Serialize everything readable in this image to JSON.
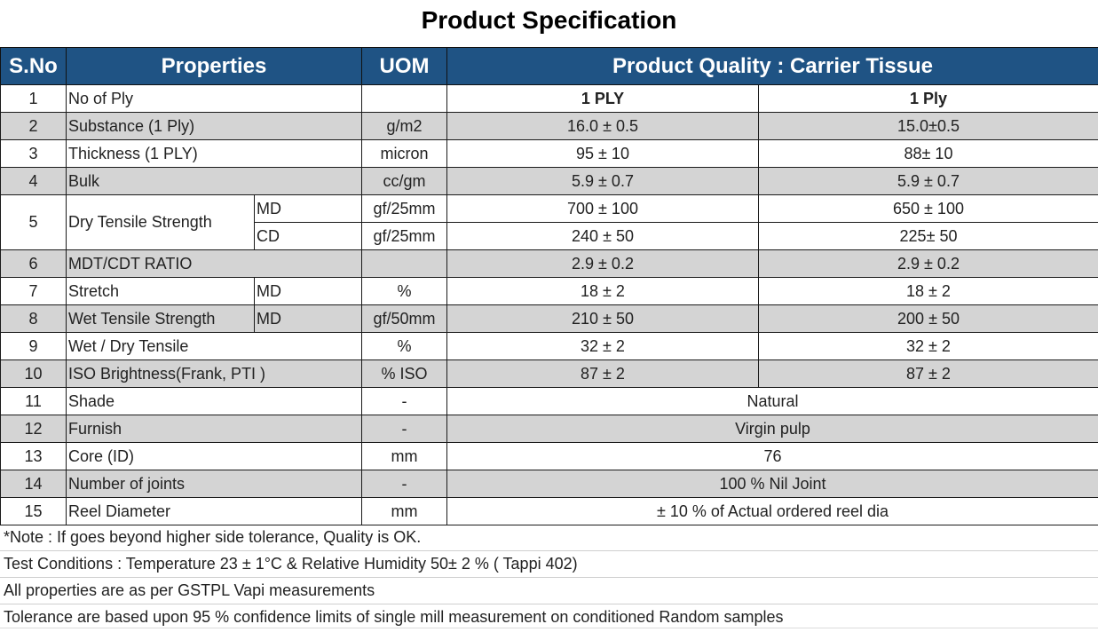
{
  "title": "Product Specification",
  "headers": {
    "sno": "S.No",
    "properties": "Properties",
    "uom": "UOM",
    "quality": "Product Quality : Carrier Tissue"
  },
  "rows": [
    {
      "sno": "1",
      "property": "No of Ply",
      "sub": "",
      "uom": "",
      "v1": "1 PLY",
      "v2": "1 Ply"
    },
    {
      "sno": "2",
      "property": "Substance (1 Ply)",
      "sub": "",
      "uom": "g/m2",
      "v1": "16.0 ± 0.5",
      "v2": "15.0±0.5"
    },
    {
      "sno": "3",
      "property": "Thickness (1 PLY)",
      "sub": "",
      "uom": "micron",
      "v1": "95 ± 10",
      "v2": "88± 10"
    },
    {
      "sno": "4",
      "property": "Bulk",
      "sub": "",
      "uom": "cc/gm",
      "v1": "5.9 ± 0.7",
      "v2": "5.9 ± 0.7"
    },
    {
      "sno": "5",
      "property": "Dry Tensile Strength",
      "sub": "MD",
      "uom": "gf/25mm",
      "v1": "700 ± 100",
      "v2": "650 ± 100"
    },
    {
      "sno": "",
      "property": "",
      "sub": "CD",
      "uom": "gf/25mm",
      "v1": "240 ± 50",
      "v2": "225± 50"
    },
    {
      "sno": "6",
      "property": "MDT/CDT RATIO",
      "sub": "",
      "uom": "",
      "v1": "2.9 ± 0.2",
      "v2": "2.9 ± 0.2"
    },
    {
      "sno": "7",
      "property": "Stretch",
      "sub": "MD",
      "uom": "%",
      "v1": "18 ± 2",
      "v2": "18 ± 2"
    },
    {
      "sno": "8",
      "property": "Wet Tensile Strength",
      "sub": "MD",
      "uom": "gf/50mm",
      "v1": "210 ± 50",
      "v2": "200 ± 50"
    },
    {
      "sno": "9",
      "property": "Wet / Dry Tensile",
      "sub": "",
      "uom": "%",
      "v1": "32 ± 2",
      "v2": "32 ± 2"
    },
    {
      "sno": "10",
      "property": "ISO Brightness(Frank, PTI )",
      "sub": "",
      "uom": "% ISO",
      "v1": "87 ± 2",
      "v2": "87 ± 2"
    },
    {
      "sno": "11",
      "property": "Shade",
      "sub": "",
      "uom": "-",
      "v1": "Natural",
      "v2": ""
    },
    {
      "sno": "12",
      "property": "Furnish",
      "sub": "",
      "uom": "-",
      "v1": "Virgin pulp",
      "v2": ""
    },
    {
      "sno": "13",
      "property": "Core (ID)",
      "sub": "",
      "uom": "mm",
      "v1": "76",
      "v2": ""
    },
    {
      "sno": "14",
      "property": "Number of joints",
      "sub": "",
      "uom": "-",
      "v1": "100 % Nil Joint",
      "v2": ""
    },
    {
      "sno": "15",
      "property": "Reel Diameter",
      "sub": "",
      "uom": "mm",
      "v1": "± 10 % of Actual ordered reel dia",
      "v2": ""
    }
  ],
  "notes": [
    "*Note : If goes beyond higher side tolerance, Quality is OK.",
    "Test Conditions : Temperature 23 ± 1°C & Relative Humidity 50± 2 % ( Tappi 402)",
    "All properties are as per  GSTPL Vapi measurements",
    "Tolerance are based upon 95 % confidence limits of single mill measurement on conditioned Random samples"
  ]
}
